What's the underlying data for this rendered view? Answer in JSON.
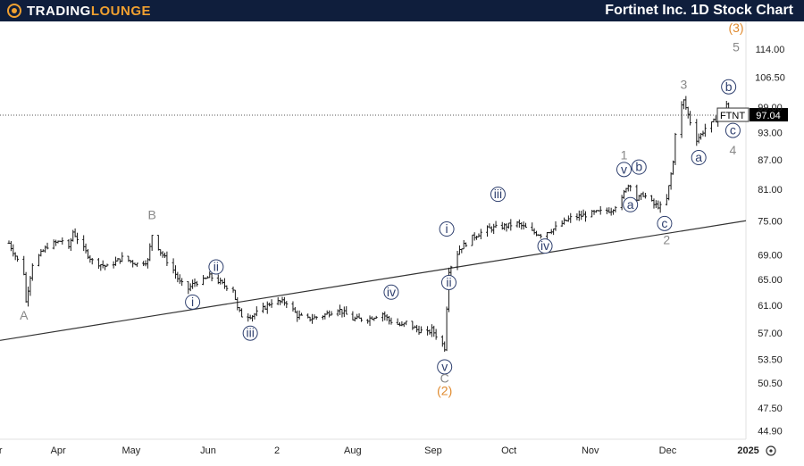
{
  "header": {
    "logo_text_main": "TradingLounge",
    "title": "Fortinet Inc. 1D Stock Chart"
  },
  "colors": {
    "header_bg": "#0f1e3c",
    "logo_accent": "#f0a030",
    "price_bar": "#1a1a1a",
    "minor_wave": "#2e3f6e",
    "primary_wave": "#888888",
    "intermediate_wave": "#e08a2e",
    "trendline": "#333333"
  },
  "chart_data": {
    "type": "ohlc",
    "ticker": "FTNT",
    "last_price": 97.04,
    "last_price_label": "97.04",
    "y_scale": "log",
    "y_ticks": [
      "114.00",
      "106.50",
      "99.00",
      "93.00",
      "87.00",
      "81.00",
      "75.00",
      "69.00",
      "65.00",
      "61.00",
      "57.00",
      "53.50",
      "50.50",
      "47.50",
      "44.90"
    ],
    "x_ticks": [
      "Mar",
      "Apr",
      "May",
      "Jun",
      "2",
      "Aug",
      "Sep",
      "Oct",
      "Nov",
      "Dec",
      "2025"
    ],
    "x_range": [
      "2024-02-12",
      "2025-01-20"
    ],
    "price_path": [
      [
        "2024-02-12",
        71.0
      ],
      [
        "2024-02-19",
        66.0
      ],
      [
        "2024-02-20",
        61.5
      ],
      [
        "2024-02-23",
        67.5
      ],
      [
        "2024-03-01",
        70.5
      ],
      [
        "2024-03-08",
        71.5
      ],
      [
        "2024-03-11",
        70.0
      ],
      [
        "2024-03-13",
        73.0
      ],
      [
        "2024-03-18",
        70.0
      ],
      [
        "2024-03-22",
        68.0
      ],
      [
        "2024-03-29",
        67.0
      ],
      [
        "2024-04-05",
        68.5
      ],
      [
        "2024-04-12",
        67.5
      ],
      [
        "2024-04-17",
        68.0
      ],
      [
        "2024-04-19",
        72.5
      ],
      [
        "2024-04-23",
        69.5
      ],
      [
        "2024-04-29",
        66.5
      ],
      [
        "2024-05-02",
        64.5
      ],
      [
        "2024-05-06",
        63.5
      ],
      [
        "2024-05-09",
        64.5
      ],
      [
        "2024-05-13",
        64.8
      ],
      [
        "2024-05-16",
        65.5
      ],
      [
        "2024-05-21",
        64.5
      ],
      [
        "2024-05-23",
        64.0
      ],
      [
        "2024-05-27",
        63.5
      ],
      [
        "2024-05-29",
        60.5
      ],
      [
        "2024-05-31",
        59.5
      ],
      [
        "2024-06-05",
        59.5
      ],
      [
        "2024-06-10",
        60.5
      ],
      [
        "2024-06-14",
        61.5
      ],
      [
        "2024-06-21",
        61.5
      ],
      [
        "2024-06-26",
        59.5
      ],
      [
        "2024-07-01",
        59.0
      ],
      [
        "2024-07-08",
        59.5
      ],
      [
        "2024-07-15",
        60.5
      ],
      [
        "2024-07-22",
        59.0
      ],
      [
        "2024-07-29",
        59.0
      ],
      [
        "2024-08-02",
        59.5
      ],
      [
        "2024-08-05",
        59.8
      ],
      [
        "2024-08-08",
        58.8
      ],
      [
        "2024-08-14",
        58.0
      ],
      [
        "2024-08-16",
        58.5
      ],
      [
        "2024-08-21",
        57.5
      ],
      [
        "2024-08-26",
        57.0
      ],
      [
        "2024-08-28",
        57.5
      ],
      [
        "2024-09-02",
        55.5
      ],
      [
        "2024-09-03",
        55.0
      ],
      [
        "2024-09-05",
        66.5
      ],
      [
        "2024-09-10",
        70.0
      ],
      [
        "2024-09-16",
        72.0
      ],
      [
        "2024-09-23",
        73.5
      ],
      [
        "2024-10-01",
        74.0
      ],
      [
        "2024-10-07",
        74.5
      ],
      [
        "2024-10-14",
        73.0
      ],
      [
        "2024-10-18",
        72.5
      ],
      [
        "2024-10-24",
        73.5
      ],
      [
        "2024-11-01",
        75.5
      ],
      [
        "2024-11-07",
        76.0
      ],
      [
        "2024-11-13",
        76.5
      ],
      [
        "2024-11-20",
        77.0
      ],
      [
        "2024-11-25",
        79.0
      ],
      [
        "2024-11-27",
        81.5
      ],
      [
        "2024-11-29",
        82.0
      ],
      [
        "2024-12-02",
        79.0
      ],
      [
        "2024-12-05",
        80.0
      ],
      [
        "2024-12-10",
        78.0
      ],
      [
        "2024-12-14",
        77.5
      ],
      [
        "2024-12-16",
        79.0
      ],
      [
        "2024-12-19",
        86.5
      ],
      [
        "2024-12-20",
        93.0
      ],
      [
        "2024-12-22",
        98.0
      ],
      [
        "2024-12-24",
        100.5
      ],
      [
        "2024-12-27",
        95.5
      ],
      [
        "2024-12-30",
        91.5
      ],
      [
        "2025-01-01",
        92.5
      ],
      [
        "2025-01-03",
        94.0
      ],
      [
        "2025-01-06",
        95.0
      ],
      [
        "2025-01-08",
        96.0
      ],
      [
        "2025-01-10",
        98.0
      ],
      [
        "2025-01-13",
        100.0
      ],
      [
        "2025-01-14",
        97.04
      ]
    ],
    "trendline": [
      [
        "2024-02-12",
        56.0
      ],
      [
        "2025-01-20",
        75.0
      ]
    ],
    "wave_labels": [
      {
        "text": "A",
        "date": "2024-02-19",
        "price": 59.5,
        "style": "primary"
      },
      {
        "text": "B",
        "date": "2024-04-19",
        "price": 76.0,
        "style": "primary"
      },
      {
        "text": "i",
        "date": "2024-05-08",
        "price": 61.5,
        "style": "minor"
      },
      {
        "text": "ii",
        "date": "2024-05-19",
        "price": 67.0,
        "style": "minor"
      },
      {
        "text": "iii",
        "date": "2024-06-04",
        "price": 57.0,
        "style": "minor"
      },
      {
        "text": "iv",
        "date": "2024-08-09",
        "price": 63.0,
        "style": "minor"
      },
      {
        "text": "v",
        "date": "2024-09-03",
        "price": 52.5,
        "style": "minor"
      },
      {
        "text": "C",
        "date": "2024-09-03",
        "price": 51.0,
        "style": "primary"
      },
      {
        "text": "(2)",
        "date": "2024-09-03",
        "price": 49.5,
        "style": "intermediate"
      },
      {
        "text": "i",
        "date": "2024-09-04",
        "price": 73.5,
        "style": "minor"
      },
      {
        "text": "ii",
        "date": "2024-09-05",
        "price": 64.5,
        "style": "minor"
      },
      {
        "text": "iii",
        "date": "2024-09-28",
        "price": 80.0,
        "style": "minor"
      },
      {
        "text": "iv",
        "date": "2024-10-20",
        "price": 70.5,
        "style": "minor"
      },
      {
        "text": "1",
        "date": "2024-11-26",
        "price": 88.0,
        "style": "primary"
      },
      {
        "text": "v",
        "date": "2024-11-26",
        "price": 85.0,
        "style": "minor"
      },
      {
        "text": "b",
        "date": "2024-12-03",
        "price": 85.5,
        "style": "minor"
      },
      {
        "text": "a",
        "date": "2024-11-29",
        "price": 78.0,
        "style": "minor"
      },
      {
        "text": "c",
        "date": "2024-12-15",
        "price": 74.5,
        "style": "minor"
      },
      {
        "text": "2",
        "date": "2024-12-16",
        "price": 71.5,
        "style": "primary"
      },
      {
        "text": "3",
        "date": "2024-12-24",
        "price": 104.5,
        "style": "primary"
      },
      {
        "text": "a",
        "date": "2024-12-31",
        "price": 87.5,
        "style": "minor"
      },
      {
        "text": "b",
        "date": "2025-01-14",
        "price": 104.0,
        "style": "minor"
      },
      {
        "text": "c",
        "date": "2025-01-16",
        "price": 93.5,
        "style": "minor"
      },
      {
        "text": "4",
        "date": "2025-01-16",
        "price": 89.0,
        "style": "primary"
      },
      {
        "text": "(3)",
        "date": "2025-01-22",
        "price": 120.0,
        "style": "intermediate"
      },
      {
        "text": "5",
        "date": "2025-01-22",
        "price": 114.5,
        "style": "primary"
      }
    ]
  }
}
